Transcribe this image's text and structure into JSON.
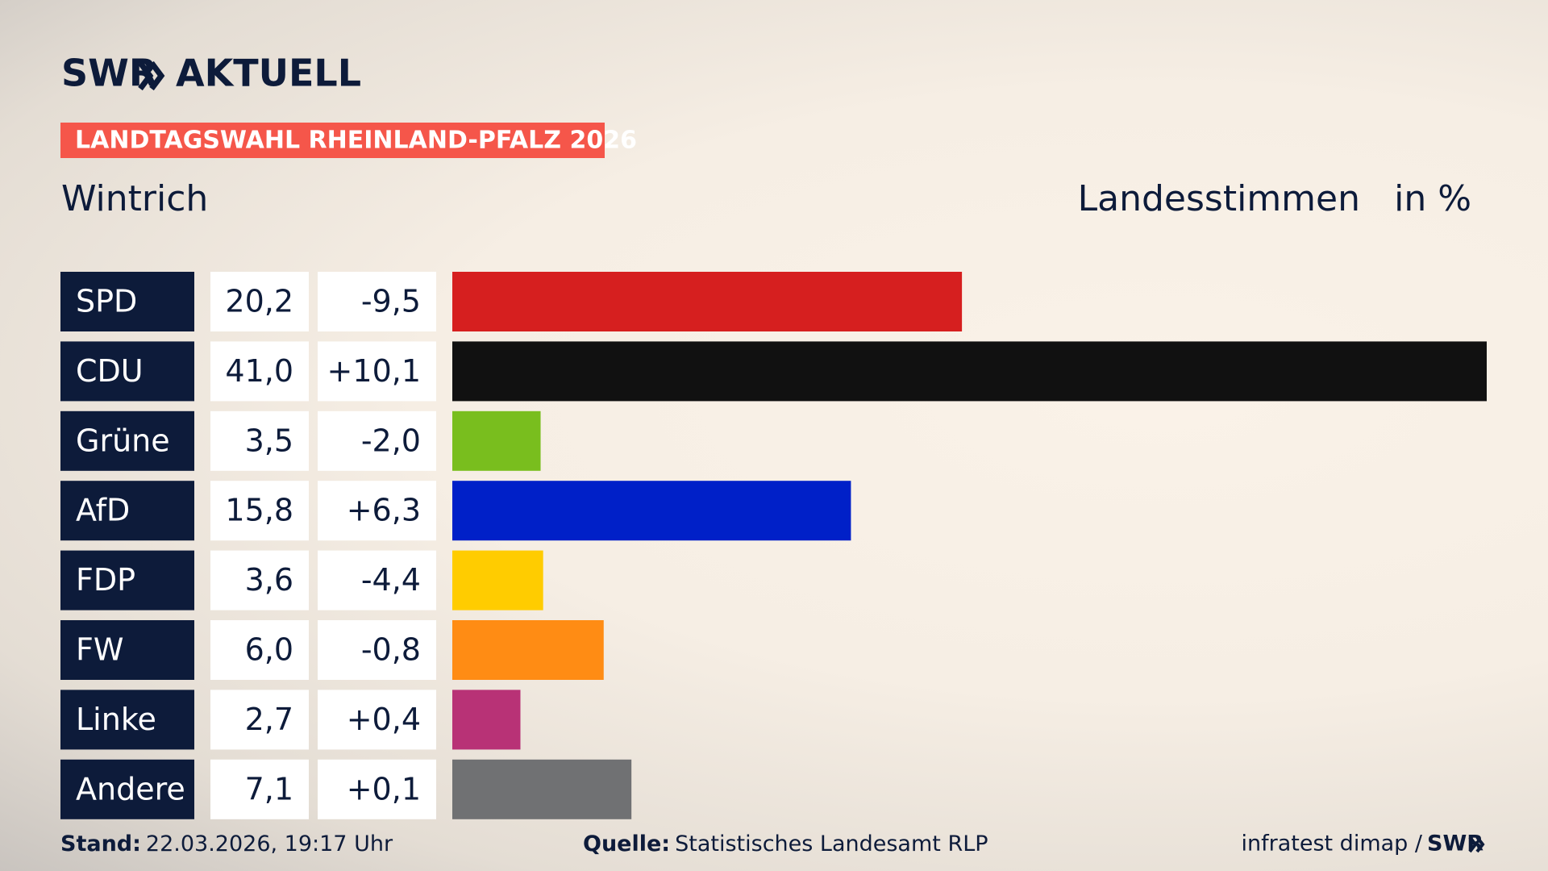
{
  "chart_data": {
    "type": "bar",
    "brand": "SWR",
    "program": "AKTUELL",
    "title": "LANDTAGSWAHL RHEINLAND-PFALZ 2026",
    "subtitle": "Wintrich",
    "vote_type": "Landesstimmen",
    "unit": "in %",
    "categories": [
      "SPD",
      "CDU",
      "Grüne",
      "AfD",
      "FDP",
      "FW",
      "Linke",
      "Andere"
    ],
    "values": [
      20.2,
      41.0,
      3.5,
      15.8,
      3.6,
      6.0,
      2.7,
      7.1
    ],
    "value_labels": [
      "20,2",
      "41,0",
      "3,5",
      "15,8",
      "3,6",
      "6,0",
      "2,7",
      "7,1"
    ],
    "changes": [
      "-9,5",
      "+10,1",
      "-2,0",
      "+6,3",
      "-4,4",
      "-0,8",
      "+0,4",
      "+0,1"
    ],
    "colors": [
      "#d61f1f",
      "#111111",
      "#79be1e",
      "#0020c8",
      "#ffcc00",
      "#ff8c14",
      "#b83276",
      "#707173"
    ],
    "stand_label": "Stand:",
    "stand": "22.03.2026, 19:17 Uhr",
    "source_label": "Quelle:",
    "source": "Statistisches Landesamt RLP",
    "credit": "infratest dimap /"
  }
}
